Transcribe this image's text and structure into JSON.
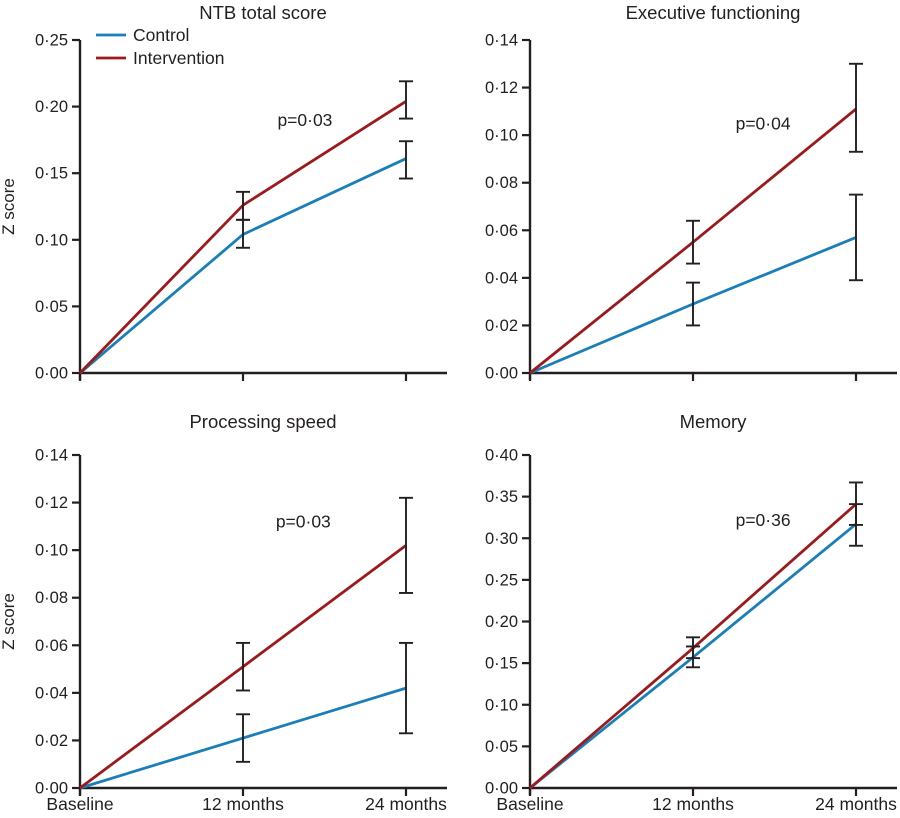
{
  "figure": {
    "ylabel": "Z score",
    "x_categories": [
      "Baseline",
      "12 months",
      "24 months"
    ],
    "legend": {
      "items": [
        {
          "label": "Control",
          "color": "#1A7FB8"
        },
        {
          "label": "Intervention",
          "color": "#9C1A1C"
        }
      ]
    },
    "colors": {
      "axis": "#231F20",
      "error_bar": "#231F20",
      "text": "#231F20",
      "background": "#FFFFFF",
      "control": "#1A7FB8",
      "intervention": "#9C1A1C"
    }
  },
  "chart_data": [
    {
      "type": "line",
      "title": "NTB total score",
      "x": [
        "Baseline",
        "12 months",
        "24 months"
      ],
      "ylabel": "Z score",
      "ylim": [
        0,
        0.25
      ],
      "grid": false,
      "legend_position": "top-left",
      "yticks": [
        {
          "value": 0.0,
          "label": "0·00"
        },
        {
          "value": 0.05,
          "label": "0·05"
        },
        {
          "value": 0.1,
          "label": "0·10"
        },
        {
          "value": 0.15,
          "label": "0·15"
        },
        {
          "value": 0.2,
          "label": "0·20"
        },
        {
          "value": 0.25,
          "label": "0·25"
        }
      ],
      "annotation": {
        "text": "p=0·03",
        "x": 1.38,
        "y": 0.19
      },
      "series": [
        {
          "name": "Control",
          "color": "#1A7FB8",
          "values": [
            0,
            0.104,
            0.161
          ],
          "ci_low": [
            null,
            0.094,
            0.146
          ],
          "ci_high": [
            null,
            0.115,
            0.174
          ]
        },
        {
          "name": "Intervention",
          "color": "#9C1A1C",
          "values": [
            0,
            0.126,
            0.204
          ],
          "ci_low": [
            null,
            0.115,
            0.191
          ],
          "ci_high": [
            null,
            0.136,
            0.219
          ]
        }
      ]
    },
    {
      "type": "line",
      "title": "Executive functioning",
      "x": [
        "Baseline",
        "12 months",
        "24 months"
      ],
      "ylabel": "Z score",
      "ylim": [
        0,
        0.14
      ],
      "grid": false,
      "legend_position": "none",
      "yticks": [
        {
          "value": 0.0,
          "label": "0·00"
        },
        {
          "value": 0.02,
          "label": "0·02"
        },
        {
          "value": 0.04,
          "label": "0·04"
        },
        {
          "value": 0.06,
          "label": "0·06"
        },
        {
          "value": 0.08,
          "label": "0·08"
        },
        {
          "value": 0.1,
          "label": "0·10"
        },
        {
          "value": 0.12,
          "label": "0·12"
        },
        {
          "value": 0.14,
          "label": "0·14"
        }
      ],
      "annotation": {
        "text": "p=0·04",
        "x": 1.43,
        "y": 0.105
      },
      "series": [
        {
          "name": "Control",
          "color": "#1A7FB8",
          "values": [
            0,
            0.029,
            0.057
          ],
          "ci_low": [
            null,
            0.02,
            0.039
          ],
          "ci_high": [
            null,
            0.038,
            0.075
          ]
        },
        {
          "name": "Intervention",
          "color": "#9C1A1C",
          "values": [
            0,
            0.055,
            0.111
          ],
          "ci_low": [
            null,
            0.046,
            0.093
          ],
          "ci_high": [
            null,
            0.064,
            0.13
          ]
        }
      ]
    },
    {
      "type": "line",
      "title": "Processing speed",
      "x": [
        "Baseline",
        "12 months",
        "24 months"
      ],
      "ylabel": "Z score",
      "ylim": [
        0,
        0.14
      ],
      "grid": false,
      "legend_position": "none",
      "yticks": [
        {
          "value": 0.0,
          "label": "0·00"
        },
        {
          "value": 0.02,
          "label": "0·02"
        },
        {
          "value": 0.04,
          "label": "0·04"
        },
        {
          "value": 0.06,
          "label": "0·06"
        },
        {
          "value": 0.08,
          "label": "0·08"
        },
        {
          "value": 0.1,
          "label": "0·10"
        },
        {
          "value": 0.12,
          "label": "0·12"
        },
        {
          "value": 0.14,
          "label": "0·14"
        }
      ],
      "annotation": {
        "text": "p=0·03",
        "x": 1.37,
        "y": 0.112
      },
      "series": [
        {
          "name": "Control",
          "color": "#1A7FB8",
          "values": [
            0,
            0.021,
            0.042
          ],
          "ci_low": [
            null,
            0.011,
            0.023
          ],
          "ci_high": [
            null,
            0.031,
            0.061
          ]
        },
        {
          "name": "Intervention",
          "color": "#9C1A1C",
          "values": [
            0,
            0.051,
            0.102
          ],
          "ci_low": [
            null,
            0.041,
            0.082
          ],
          "ci_high": [
            null,
            0.061,
            0.122
          ]
        }
      ]
    },
    {
      "type": "line",
      "title": "Memory",
      "x": [
        "Baseline",
        "12 months",
        "24 months"
      ],
      "ylabel": "Z score",
      "ylim": [
        0,
        0.4
      ],
      "grid": false,
      "legend_position": "none",
      "yticks": [
        {
          "value": 0.0,
          "label": "0·00"
        },
        {
          "value": 0.05,
          "label": "0·05"
        },
        {
          "value": 0.1,
          "label": "0·10"
        },
        {
          "value": 0.15,
          "label": "0·15"
        },
        {
          "value": 0.2,
          "label": "0·20"
        },
        {
          "value": 0.25,
          "label": "0·25"
        },
        {
          "value": 0.3,
          "label": "0·30"
        },
        {
          "value": 0.35,
          "label": "0·35"
        },
        {
          "value": 0.4,
          "label": "0·40"
        }
      ],
      "annotation": {
        "text": "p=0·36",
        "x": 1.43,
        "y": 0.322
      },
      "series": [
        {
          "name": "Control",
          "color": "#1A7FB8",
          "values": [
            0,
            0.157,
            0.317
          ],
          "ci_low": [
            null,
            0.145,
            0.291
          ],
          "ci_high": [
            null,
            0.17,
            0.341
          ]
        },
        {
          "name": "Intervention",
          "color": "#9C1A1C",
          "values": [
            0,
            0.168,
            0.341
          ],
          "ci_low": [
            null,
            0.156,
            0.316
          ],
          "ci_high": [
            null,
            0.181,
            0.367
          ]
        }
      ]
    }
  ]
}
